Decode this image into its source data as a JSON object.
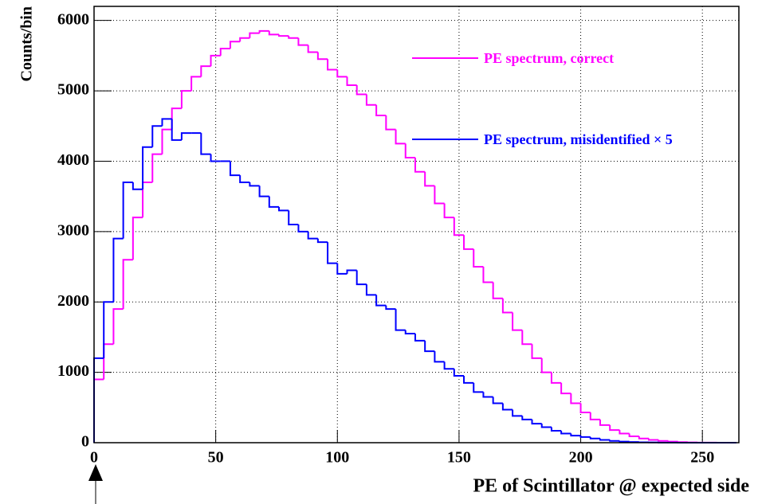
{
  "chart_data": {
    "type": "histogram",
    "xlabel": "PE of Scintillator @ expected side",
    "ylabel": "Counts/bin",
    "bins": [
      0,
      4,
      8,
      12,
      16,
      20,
      24,
      28,
      32,
      36,
      40,
      44,
      48,
      52,
      56,
      60,
      64,
      68,
      72,
      76,
      80,
      84,
      88,
      92,
      96,
      100,
      104,
      108,
      112,
      116,
      120,
      124,
      128,
      132,
      136,
      140,
      144,
      148,
      152,
      156,
      160,
      164,
      168,
      172,
      176,
      180,
      184,
      188,
      192,
      196,
      200,
      204,
      208,
      212,
      216,
      220,
      224,
      228,
      232,
      236,
      240,
      244,
      248,
      252,
      256,
      260,
      264
    ],
    "series": [
      {
        "name": "PE spectrum, correct",
        "color": "#ff00ff",
        "values": [
          900,
          1400,
          1900,
          2600,
          3200,
          3700,
          4100,
          4450,
          4750,
          5000,
          5200,
          5350,
          5500,
          5600,
          5700,
          5750,
          5820,
          5850,
          5800,
          5780,
          5750,
          5650,
          5550,
          5450,
          5300,
          5200,
          5080,
          4950,
          4800,
          4650,
          4450,
          4250,
          4050,
          3850,
          3650,
          3400,
          3200,
          2950,
          2750,
          2500,
          2280,
          2050,
          1850,
          1600,
          1400,
          1200,
          1000,
          850,
          700,
          560,
          430,
          330,
          250,
          180,
          130,
          90,
          60,
          40,
          25,
          15,
          8,
          4,
          2,
          1,
          0,
          0
        ]
      },
      {
        "name": "PE spectrum, misidentified × 5",
        "color": "#0000ff",
        "values": [
          1200,
          2000,
          2900,
          3700,
          3600,
          4200,
          4500,
          4600,
          4300,
          4400,
          4400,
          4100,
          4000,
          4000,
          3800,
          3700,
          3650,
          3500,
          3350,
          3300,
          3100,
          3000,
          2900,
          2850,
          2550,
          2400,
          2450,
          2250,
          2100,
          1950,
          1900,
          1600,
          1550,
          1450,
          1300,
          1150,
          1050,
          950,
          850,
          720,
          650,
          560,
          470,
          380,
          330,
          270,
          220,
          170,
          130,
          100,
          80,
          60,
          40,
          25,
          15,
          10,
          6,
          4,
          2,
          1,
          0,
          0,
          0,
          0,
          0,
          0
        ]
      }
    ],
    "xlim": [
      0,
      265
    ],
    "ylim": [
      0,
      6200
    ],
    "xticks": [
      0,
      50,
      100,
      150,
      200,
      250
    ],
    "yticks": [
      0,
      1000,
      2000,
      3000,
      4000,
      5000,
      6000
    ],
    "grid": true
  }
}
